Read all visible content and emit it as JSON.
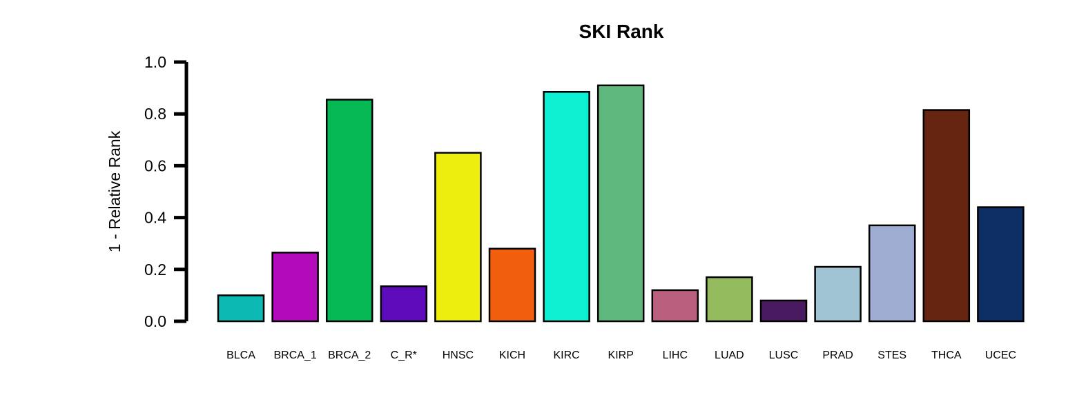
{
  "chart_data": {
    "type": "bar",
    "title": "SKI Rank",
    "xlabel": "",
    "ylabel": "1 - Relative Rank",
    "ylim": [
      0,
      1
    ],
    "yticks": [
      "0.0",
      "0.2",
      "0.4",
      "0.6",
      "0.8",
      "1.0"
    ],
    "grid": false,
    "categories": [
      "BLCA",
      "BRCA_1",
      "BRCA_2",
      "C_R*",
      "HNSC",
      "KICH",
      "KIRC",
      "KIRP",
      "LIHC",
      "LUAD",
      "LUSC",
      "PRAD",
      "STES",
      "THCA",
      "UCEC"
    ],
    "values": [
      0.1,
      0.265,
      0.855,
      0.135,
      0.65,
      0.28,
      0.885,
      0.91,
      0.12,
      0.17,
      0.08,
      0.21,
      0.37,
      0.815,
      0.44
    ],
    "colors": [
      "#0CB9B3",
      "#B30BBB",
      "#07B955",
      "#5D0BBB",
      "#EEEE0D",
      "#F15F0E",
      "#0EEED0",
      "#5FB97F",
      "#BB5F7F",
      "#95BB5F",
      "#491A5F",
      "#A0C4D3",
      "#9EADD1",
      "#662511",
      "#0E2F63"
    ]
  }
}
